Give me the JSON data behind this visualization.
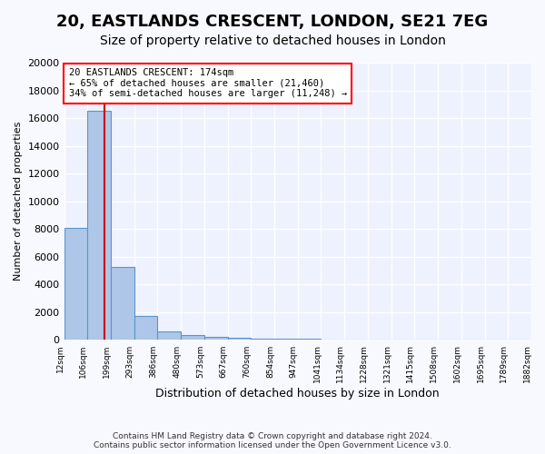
{
  "title1": "20, EASTLANDS CRESCENT, LONDON, SE21 7EG",
  "title2": "Size of property relative to detached houses in London",
  "xlabel": "Distribution of detached houses by size in London",
  "ylabel": "Number of detached properties",
  "bar_values": [
    8100,
    16500,
    5300,
    1750,
    650,
    350,
    230,
    150,
    100,
    80,
    70,
    60,
    55,
    50,
    45,
    40,
    35,
    30,
    25,
    20
  ],
  "bar_labels": [
    "12sqm",
    "106sqm",
    "199sqm",
    "293sqm",
    "386sqm",
    "480sqm",
    "573sqm",
    "667sqm",
    "760sqm",
    "854sqm",
    "947sqm",
    "1041sqm",
    "1134sqm",
    "1228sqm",
    "1321sqm",
    "1415sqm",
    "1508sqm",
    "1602sqm",
    "1695sqm",
    "1789sqm",
    "1882sqm"
  ],
  "bar_color": "#aec6e8",
  "bar_edgecolor": "#5a96c8",
  "annotation_line1": "20 EASTLANDS CRESCENT: 174sqm",
  "annotation_line2": "← 65% of detached houses are smaller (21,460)",
  "annotation_line3": "34% of semi-detached houses are larger (11,248) →",
  "vline_color": "#cc0000",
  "ylim": [
    0,
    20000
  ],
  "yticks": [
    0,
    2000,
    4000,
    6000,
    8000,
    10000,
    12000,
    14000,
    16000,
    18000,
    20000
  ],
  "footer1": "Contains HM Land Registry data © Crown copyright and database right 2024.",
  "footer2": "Contains public sector information licensed under the Open Government Licence v3.0.",
  "bg_color": "#eef2ff",
  "grid_color": "#ffffff",
  "title1_fontsize": 13,
  "title2_fontsize": 10
}
